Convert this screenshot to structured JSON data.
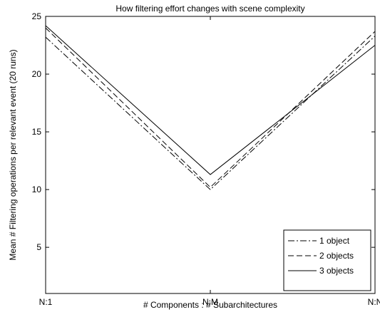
{
  "chart_data": {
    "type": "line",
    "title": "How filtering effort changes with scene complexity",
    "xlabel": "# Components : # Subarchitectures",
    "ylabel": "Mean # Filtering operations per relevant event (20 runs)",
    "categories": [
      "N:1",
      "N:M",
      "N:N"
    ],
    "ylim": [
      1,
      25
    ],
    "yticks": [
      5,
      10,
      15,
      20,
      25
    ],
    "grid": false,
    "legend_position": "bottom-right",
    "series": [
      {
        "name": "1 object",
        "style": "dash-dot",
        "color": "#000000",
        "values": [
          23.2,
          10.0,
          23.3
        ]
      },
      {
        "name": "2 objects",
        "style": "dashed",
        "color": "#000000",
        "values": [
          24.0,
          10.2,
          23.7
        ]
      },
      {
        "name": "3 objects",
        "style": "solid",
        "color": "#000000",
        "values": [
          24.2,
          11.3,
          22.5
        ]
      }
    ]
  }
}
